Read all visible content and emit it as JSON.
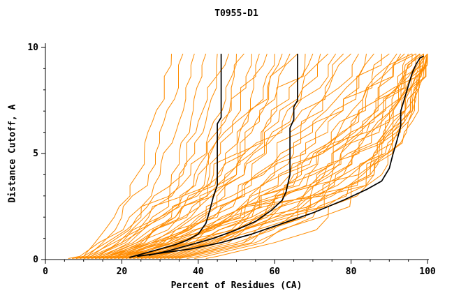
{
  "chart_data": {
    "type": "line",
    "title": "T0955-D1",
    "xlabel": "Percent of Residues (CA)",
    "ylabel": "Distance Cutoff, A",
    "xlim": [
      0,
      100
    ],
    "ylim": [
      0,
      10
    ],
    "x_ticks": [
      0,
      20,
      40,
      60,
      80,
      100
    ],
    "y_ticks": [
      0,
      5,
      10
    ],
    "x_minor_step": 5,
    "y_minor_step": 1,
    "grid": false,
    "legend": "none",
    "colors": {
      "orange": "#ff8c00",
      "black": "#000000",
      "background": "#ffffff"
    },
    "orange_curves": {
      "y_levels": [
        0.15,
        0.8,
        2,
        4,
        6.5,
        9.7
      ],
      "x_values": [
        [
          10,
          13,
          18,
          24,
          28,
          33
        ],
        [
          11,
          15,
          20,
          27,
          31,
          36
        ],
        [
          9,
          14,
          22,
          30,
          35,
          39
        ],
        [
          12,
          17,
          24,
          33,
          38,
          42
        ],
        [
          14,
          19,
          26,
          35,
          40,
          45
        ],
        [
          10,
          16,
          25,
          36,
          42,
          48
        ],
        [
          13,
          20,
          28,
          38,
          44,
          50
        ],
        [
          15,
          22,
          30,
          40,
          46,
          52
        ],
        [
          11,
          18,
          27,
          39,
          47,
          54
        ],
        [
          16,
          24,
          33,
          43,
          49,
          56
        ],
        [
          12,
          20,
          30,
          42,
          50,
          58
        ],
        [
          17,
          25,
          34,
          45,
          52,
          60
        ],
        [
          13,
          21,
          31,
          44,
          53,
          62
        ],
        [
          18,
          26,
          36,
          47,
          55,
          64
        ],
        [
          14,
          23,
          34,
          46,
          56,
          66
        ],
        [
          19,
          28,
          38,
          50,
          58,
          68
        ],
        [
          15,
          24,
          35,
          48,
          59,
          70
        ],
        [
          20,
          29,
          40,
          52,
          61,
          72
        ],
        [
          16,
          26,
          37,
          50,
          62,
          74
        ],
        [
          21,
          30,
          42,
          54,
          64,
          76
        ],
        [
          17,
          27,
          39,
          52,
          65,
          78
        ],
        [
          22,
          32,
          44,
          56,
          67,
          80
        ],
        [
          18,
          28,
          41,
          55,
          68,
          82
        ],
        [
          23,
          33,
          46,
          59,
          70,
          84
        ],
        [
          19,
          30,
          43,
          57,
          71,
          86
        ],
        [
          24,
          35,
          48,
          61,
          73,
          88
        ],
        [
          20,
          31,
          45,
          60,
          74,
          90
        ],
        [
          25,
          36,
          50,
          64,
          77,
          92
        ],
        [
          21,
          33,
          47,
          62,
          78,
          94
        ],
        [
          26,
          38,
          52,
          66,
          80,
          96
        ],
        [
          22,
          34,
          49,
          65,
          82,
          98
        ],
        [
          27,
          40,
          54,
          69,
          84,
          100
        ],
        [
          30,
          42,
          55,
          70,
          85,
          95
        ],
        [
          28,
          41,
          53,
          68,
          83,
          97
        ],
        [
          32,
          45,
          58,
          72,
          86,
          99
        ],
        [
          24,
          37,
          51,
          67,
          81,
          93
        ],
        [
          29,
          43,
          57,
          73,
          87,
          100
        ],
        [
          33,
          46,
          60,
          75,
          88,
          98
        ],
        [
          25,
          39,
          54,
          71,
          85,
          96
        ],
        [
          31,
          44,
          59,
          76,
          89,
          100
        ],
        [
          34,
          48,
          62,
          78,
          90,
          99
        ],
        [
          26,
          40,
          56,
          74,
          88,
          97
        ],
        [
          35,
          50,
          64,
          80,
          91,
          100
        ],
        [
          36,
          52,
          66,
          82,
          92,
          98
        ],
        [
          38,
          54,
          68,
          83,
          93,
          100
        ],
        [
          40,
          55,
          70,
          85,
          94,
          99
        ],
        [
          42,
          57,
          72,
          86,
          95,
          100
        ],
        [
          45,
          60,
          74,
          88,
          96,
          100
        ],
        [
          16,
          28,
          48,
          75,
          90,
          99
        ],
        [
          20,
          34,
          56,
          82,
          93,
          100
        ],
        [
          23,
          38,
          60,
          84,
          94,
          100
        ],
        [
          28,
          44,
          64,
          86,
          95,
          100
        ],
        [
          18,
          32,
          52,
          78,
          91,
          98
        ],
        [
          37,
          52,
          68,
          85,
          93,
          99
        ]
      ]
    },
    "black_curves": [
      [
        [
          22,
          0.1
        ],
        [
          26,
          0.3
        ],
        [
          30,
          0.5
        ],
        [
          34,
          0.7
        ],
        [
          37,
          0.9
        ],
        [
          40,
          1.2
        ],
        [
          42,
          1.7
        ],
        [
          43,
          2.3
        ],
        [
          44,
          3.0
        ],
        [
          45,
          3.5
        ],
        [
          45,
          6.4
        ],
        [
          46,
          6.7
        ],
        [
          46,
          9.7
        ]
      ],
      [
        [
          27,
          0.2
        ],
        [
          32,
          0.4
        ],
        [
          38,
          0.7
        ],
        [
          44,
          1.0
        ],
        [
          50,
          1.4
        ],
        [
          55,
          1.8
        ],
        [
          59,
          2.3
        ],
        [
          62,
          2.8
        ],
        [
          63,
          3.2
        ],
        [
          64,
          4.0
        ],
        [
          64,
          6.2
        ],
        [
          65,
          6.6
        ],
        [
          65,
          7.2
        ],
        [
          66,
          7.5
        ],
        [
          66,
          9.7
        ]
      ],
      [
        [
          24,
          0.15
        ],
        [
          30,
          0.3
        ],
        [
          38,
          0.5
        ],
        [
          46,
          0.8
        ],
        [
          54,
          1.2
        ],
        [
          62,
          1.7
        ],
        [
          70,
          2.2
        ],
        [
          78,
          2.8
        ],
        [
          84,
          3.3
        ],
        [
          88,
          3.7
        ],
        [
          90,
          4.3
        ],
        [
          91,
          5.0
        ],
        [
          92,
          5.6
        ],
        [
          93,
          6.3
        ],
        [
          93,
          7.0
        ],
        [
          94,
          7.6
        ],
        [
          95,
          8.2
        ],
        [
          96,
          8.8
        ],
        [
          97,
          9.2
        ],
        [
          98,
          9.5
        ],
        [
          99,
          9.6
        ]
      ]
    ]
  }
}
